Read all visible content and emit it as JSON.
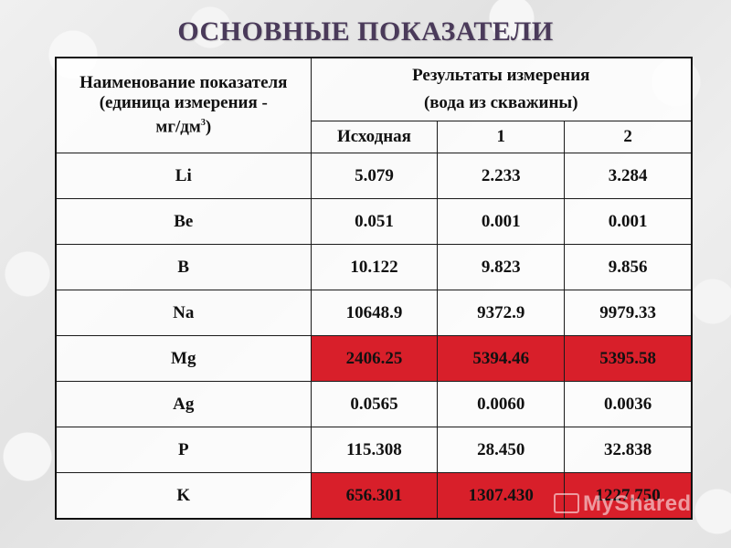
{
  "title": "ОСНОВНЫЕ ПОКАЗАТЕЛИ",
  "header": {
    "name_line1": "Наименование показателя",
    "name_line2": "(единица измерения -",
    "name_line3": "мг/дм",
    "name_sup": "3",
    "name_close": ")",
    "results_line1": "Результаты измерения",
    "results_line2": "(вода из скважины)",
    "col1": "Исходная",
    "col2": "1",
    "col3": "2"
  },
  "rows": [
    {
      "name": "Li",
      "v0": "5.079",
      "v1": "2.233",
      "v2": "3.284",
      "highlight": false
    },
    {
      "name": "Be",
      "v0": "0.051",
      "v1": "0.001",
      "v2": "0.001",
      "highlight": false
    },
    {
      "name": "B",
      "v0": "10.122",
      "v1": "9.823",
      "v2": "9.856",
      "highlight": false
    },
    {
      "name": "Na",
      "v0": "10648.9",
      "v1": "9372.9",
      "v2": "9979.33",
      "highlight": false
    },
    {
      "name": "Mg",
      "v0": "2406.25",
      "v1": "5394.46",
      "v2": "5395.58",
      "highlight": true
    },
    {
      "name": "Ag",
      "v0": "0.0565",
      "v1": "0.0060",
      "v2": "0.0036",
      "highlight": false
    },
    {
      "name": "P",
      "v0": "115.308",
      "v1": "28.450",
      "v2": "32.838",
      "highlight": false
    },
    {
      "name": "K",
      "v0": "656.301",
      "v1": "1307.430",
      "v2": "1227.750",
      "highlight": true
    }
  ],
  "colors": {
    "highlight": "#d81f2a",
    "title": "#4a3a5a"
  },
  "watermark": "MyShared"
}
